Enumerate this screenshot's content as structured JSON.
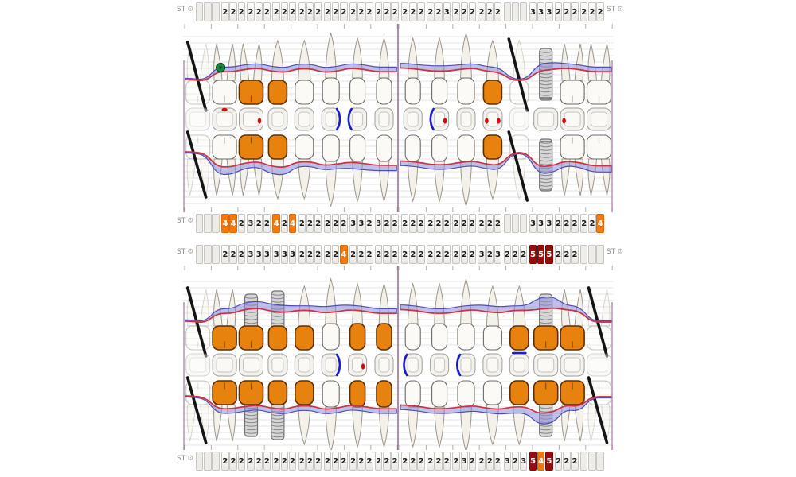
{
  "labels": {
    "st": "ST"
  },
  "icons": {
    "gear": "⚙"
  },
  "colors": {
    "crown_orange": "#e8820f",
    "crown_stroke": "#5f2e00",
    "cell_orange": "#f5790f",
    "cell_darkred": "#9c0a0e",
    "band_blue": "#8d8ddb",
    "band_stroke": "#4d4db8",
    "red_line": "#d23040",
    "bracket_blue": "#1a1acc",
    "dot_red": "#cc0f0f",
    "implant_gray": "#d6d6d6",
    "divider_purple": "#8f5c86",
    "slash_black": "#141414",
    "furcation_green": "#16883c"
  },
  "perio_rows": [
    {
      "name": "upper-buccal",
      "show_left_label": true,
      "show_right_label": true,
      "left": [
        "",
        "",
        "",
        "2",
        "2",
        "2",
        "2",
        "2",
        "2",
        "2",
        "2",
        "2",
        "2",
        "2",
        "2",
        "2",
        "2",
        "2",
        "2",
        "2",
        "2",
        "2",
        "2",
        "2"
      ],
      "right": [
        "2",
        "2",
        "2",
        "2",
        "2",
        "3",
        "2",
        "2",
        "2",
        "2",
        "2",
        "2",
        "",
        "",
        "",
        "3",
        "3",
        "3",
        "2",
        "2",
        "2",
        "2",
        "2",
        "2"
      ]
    },
    {
      "name": "upper-palatal",
      "show_left_label": true,
      "show_right_label": false,
      "left": [
        "",
        "",
        "",
        "4",
        "4",
        "2",
        "3",
        "2",
        "2",
        "4",
        "2",
        "4",
        "2",
        "2",
        "2",
        "2",
        "2",
        "2",
        "3",
        "3",
        "2",
        "3",
        "2",
        "2"
      ],
      "right": [
        "2",
        "2",
        "2",
        "2",
        "2",
        "2",
        "2",
        "2",
        "2",
        "2",
        "2",
        "2",
        "",
        "",
        "",
        "3",
        "3",
        "3",
        "2",
        "2",
        "2",
        "2",
        "2",
        "4"
      ]
    },
    {
      "name": "lower-lingual",
      "show_left_label": true,
      "show_right_label": true,
      "left": [
        "",
        "",
        "",
        "2",
        "2",
        "2",
        "3",
        "3",
        "3",
        "3",
        "3",
        "3",
        "2",
        "2",
        "2",
        "2",
        "2",
        "4",
        "2",
        "2",
        "2",
        "2",
        "2",
        "2"
      ],
      "right": [
        "2",
        "2",
        "2",
        "2",
        "2",
        "2",
        "2",
        "2",
        "2",
        "3",
        "2",
        "3",
        "2",
        "2",
        "2",
        "5",
        "5",
        "5",
        "2",
        "2",
        "2",
        "",
        "",
        ""
      ]
    },
    {
      "name": "lower-buccal",
      "show_left_label": true,
      "show_right_label": false,
      "left": [
        "",
        "",
        "",
        "2",
        "2",
        "2",
        "2",
        "2",
        "2",
        "2",
        "2",
        "2",
        "2",
        "2",
        "2",
        "2",
        "2",
        "2",
        "2",
        "2",
        "2",
        "2",
        "2",
        "2"
      ],
      "right": [
        "2",
        "2",
        "2",
        "2",
        "2",
        "2",
        "2",
        "3",
        "2",
        "2",
        "2",
        "2",
        "3",
        "2",
        "3",
        "5",
        "4",
        "5",
        "2",
        "2",
        "2",
        "",
        "",
        ""
      ]
    }
  ],
  "teeth": {
    "upper_left": [
      {
        "fdi": "18",
        "type": "molar",
        "status": "missing",
        "marks": []
      },
      {
        "fdi": "17",
        "type": "molar",
        "status": "normal",
        "marks": [
          "furcation-green",
          "dot-top"
        ]
      },
      {
        "fdi": "16",
        "type": "molar",
        "status": "crown",
        "marks": [
          "dot-right"
        ]
      },
      {
        "fdi": "15",
        "type": "premolar",
        "status": "crown",
        "marks": []
      },
      {
        "fdi": "14",
        "type": "premolar",
        "status": "normal",
        "marks": []
      },
      {
        "fdi": "13",
        "type": "canine",
        "status": "normal",
        "marks": [
          "bracket-right"
        ]
      },
      {
        "fdi": "12",
        "type": "incisor",
        "status": "normal",
        "marks": [
          "bracket-left"
        ]
      },
      {
        "fdi": "11",
        "type": "incisor",
        "status": "normal",
        "marks": []
      }
    ],
    "upper_right": [
      {
        "fdi": "21",
        "type": "incisor",
        "status": "normal",
        "marks": []
      },
      {
        "fdi": "22",
        "type": "incisor",
        "status": "normal",
        "marks": [
          "bracket-left",
          "dot-right"
        ]
      },
      {
        "fdi": "23",
        "type": "canine",
        "status": "normal",
        "marks": []
      },
      {
        "fdi": "24",
        "type": "premolar",
        "status": "crown",
        "marks": [
          "dot-left",
          "dot-right"
        ]
      },
      {
        "fdi": "25",
        "type": "premolar",
        "status": "missing",
        "marks": []
      },
      {
        "fdi": "26",
        "type": "molar",
        "status": "implant",
        "marks": []
      },
      {
        "fdi": "27",
        "type": "molar",
        "status": "normal",
        "marks": [
          "dot-left"
        ]
      },
      {
        "fdi": "28",
        "type": "molar",
        "status": "normal",
        "marks": []
      }
    ],
    "lower_left": [
      {
        "fdi": "48",
        "type": "molar",
        "status": "missing",
        "marks": []
      },
      {
        "fdi": "47",
        "type": "molar",
        "status": "crown",
        "marks": []
      },
      {
        "fdi": "46",
        "type": "molar",
        "status": "implant_crown",
        "marks": []
      },
      {
        "fdi": "45",
        "type": "premolar",
        "status": "implant_crown",
        "marks": []
      },
      {
        "fdi": "44",
        "type": "premolar",
        "status": "crown",
        "marks": []
      },
      {
        "fdi": "43",
        "type": "canine",
        "status": "normal",
        "marks": [
          "bracket-right"
        ]
      },
      {
        "fdi": "42",
        "type": "incisor",
        "status": "crown",
        "marks": [
          "dot-right"
        ]
      },
      {
        "fdi": "41",
        "type": "incisor",
        "status": "crown",
        "marks": []
      }
    ],
    "lower_right": [
      {
        "fdi": "31",
        "type": "incisor",
        "status": "normal",
        "marks": [
          "bracket-left"
        ]
      },
      {
        "fdi": "32",
        "type": "incisor",
        "status": "normal",
        "marks": []
      },
      {
        "fdi": "33",
        "type": "canine",
        "status": "normal",
        "marks": [
          "bracket-left"
        ]
      },
      {
        "fdi": "34",
        "type": "premolar",
        "status": "normal",
        "marks": []
      },
      {
        "fdi": "35",
        "type": "premolar",
        "status": "crown",
        "marks": [
          "line-top"
        ]
      },
      {
        "fdi": "36",
        "type": "molar",
        "status": "implant_crown",
        "marks": []
      },
      {
        "fdi": "37",
        "type": "molar",
        "status": "crown",
        "marks": []
      },
      {
        "fdi": "38",
        "type": "molar",
        "status": "missing",
        "marks": []
      }
    ]
  }
}
